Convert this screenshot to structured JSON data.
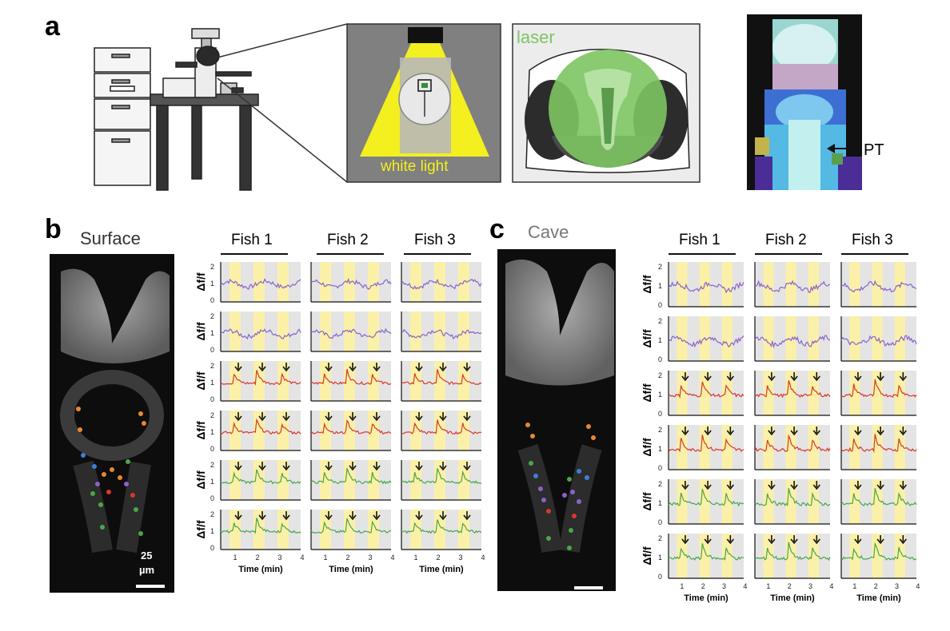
{
  "panel_a": {
    "letter": "a",
    "white_light_label": "white light",
    "laser_label": "laser",
    "pt_label": "PT"
  },
  "panel_b": {
    "letter": "b",
    "condition": "Surface",
    "scale_bar_label": [
      "25",
      "µm"
    ],
    "fish_labels": [
      "Fish 1",
      "Fish 2",
      "Fish 3"
    ]
  },
  "panel_c": {
    "letter": "c",
    "condition": "Cave",
    "fish_labels": [
      "Fish 1",
      "Fish 2",
      "Fish 3"
    ]
  },
  "traces": {
    "y_label": "Δf/f",
    "y_ticks": [
      "0",
      "1",
      "2"
    ],
    "x_ticks": [
      "1",
      "2",
      "3",
      "4"
    ],
    "x_label": "Time (min)",
    "row_colors": [
      "#8a63c8",
      "#8a63c8",
      "#d8382b",
      "#d8382b",
      "#4aa64a",
      "#4aa64a"
    ],
    "accent_colors": {
      "stimulus": "#fbf0a8",
      "gap": "#e4e4e4"
    }
  },
  "colors": {
    "white_light": "#f4ef1e",
    "laser": "#7dc460"
  }
}
